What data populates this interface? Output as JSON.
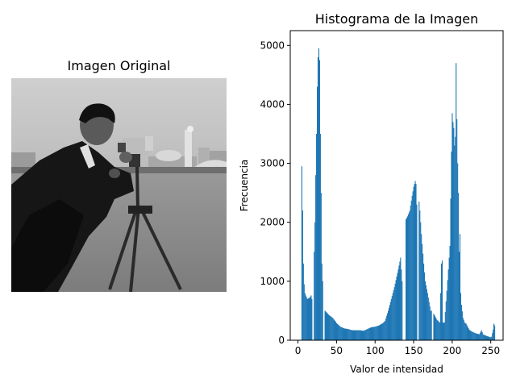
{
  "image_panel": {
    "title": "Imagen Original",
    "colors": {
      "sky": "#c9c9c9",
      "ground": "#8c8c8c",
      "coat": "#1a1a1a"
    }
  },
  "chart_data": {
    "type": "bar",
    "title": "Histograma de la Imagen",
    "xlabel": "Valor de intensidad",
    "ylabel": "Frecuencia",
    "xlim": [
      -10,
      266
    ],
    "ylim": [
      0,
      5250
    ],
    "xticks": [
      0,
      50,
      100,
      150,
      200,
      250
    ],
    "yticks": [
      0,
      1000,
      2000,
      3000,
      4000,
      5000
    ],
    "bar_color": "#1f77b4",
    "grid": false,
    "legend": "none",
    "bin_width": 1,
    "keypoints": [
      [
        0,
        0
      ],
      [
        4,
        0
      ],
      [
        5,
        2950
      ],
      [
        6,
        2200
      ],
      [
        7,
        1300
      ],
      [
        8,
        950
      ],
      [
        9,
        800
      ],
      [
        10,
        760
      ],
      [
        12,
        700
      ],
      [
        15,
        720
      ],
      [
        17,
        760
      ],
      [
        18,
        700
      ],
      [
        19,
        0
      ],
      [
        20,
        0
      ],
      [
        21,
        1500
      ],
      [
        22,
        2000
      ],
      [
        23,
        2800
      ],
      [
        24,
        3500
      ],
      [
        25,
        4300
      ],
      [
        26,
        4800
      ],
      [
        27,
        4950
      ],
      [
        28,
        4750
      ],
      [
        29,
        3500
      ],
      [
        30,
        2500
      ],
      [
        31,
        1300
      ],
      [
        32,
        1000
      ],
      [
        33,
        0
      ],
      [
        34,
        0
      ],
      [
        35,
        500
      ],
      [
        38,
        460
      ],
      [
        40,
        430
      ],
      [
        45,
        380
      ],
      [
        48,
        330
      ],
      [
        50,
        290
      ],
      [
        55,
        230
      ],
      [
        60,
        200
      ],
      [
        65,
        190
      ],
      [
        70,
        170
      ],
      [
        75,
        170
      ],
      [
        80,
        170
      ],
      [
        85,
        160
      ],
      [
        90,
        190
      ],
      [
        95,
        220
      ],
      [
        100,
        230
      ],
      [
        105,
        250
      ],
      [
        110,
        290
      ],
      [
        113,
        330
      ],
      [
        117,
        500
      ],
      [
        120,
        650
      ],
      [
        125,
        900
      ],
      [
        130,
        1200
      ],
      [
        133,
        1400
      ],
      [
        135,
        1000
      ],
      [
        136,
        0
      ],
      [
        139,
        0
      ],
      [
        140,
        2050
      ],
      [
        142,
        2100
      ],
      [
        145,
        2200
      ],
      [
        148,
        2450
      ],
      [
        150,
        2600
      ],
      [
        152,
        2700
      ],
      [
        153,
        2650
      ],
      [
        154,
        2300
      ],
      [
        155,
        0
      ],
      [
        156,
        0
      ],
      [
        157,
        2350
      ],
      [
        158,
        2200
      ],
      [
        160,
        1800
      ],
      [
        163,
        1300
      ],
      [
        165,
        1000
      ],
      [
        168,
        800
      ],
      [
        170,
        650
      ],
      [
        172,
        500
      ],
      [
        174,
        0
      ],
      [
        175,
        0
      ],
      [
        176,
        450
      ],
      [
        180,
        350
      ],
      [
        184,
        300
      ],
      [
        186,
        1300
      ],
      [
        187,
        1350
      ],
      [
        188,
        300
      ],
      [
        190,
        300
      ],
      [
        195,
        1200
      ],
      [
        197,
        1600
      ],
      [
        199,
        3200
      ],
      [
        200,
        3850
      ],
      [
        201,
        3700
      ],
      [
        202,
        3600
      ],
      [
        203,
        3300
      ],
      [
        204,
        3450
      ],
      [
        205,
        4700
      ],
      [
        206,
        3750
      ],
      [
        207,
        3000
      ],
      [
        208,
        2500
      ],
      [
        209,
        1500
      ],
      [
        210,
        1800
      ],
      [
        211,
        800
      ],
      [
        212,
        600
      ],
      [
        214,
        380
      ],
      [
        216,
        300
      ],
      [
        218,
        280
      ],
      [
        220,
        230
      ],
      [
        222,
        180
      ],
      [
        225,
        150
      ],
      [
        230,
        120
      ],
      [
        235,
        100
      ],
      [
        238,
        170
      ],
      [
        240,
        100
      ],
      [
        245,
        70
      ],
      [
        250,
        50
      ],
      [
        251,
        60
      ],
      [
        252,
        120
      ],
      [
        253,
        180
      ],
      [
        254,
        280
      ],
      [
        255,
        250
      ]
    ]
  }
}
